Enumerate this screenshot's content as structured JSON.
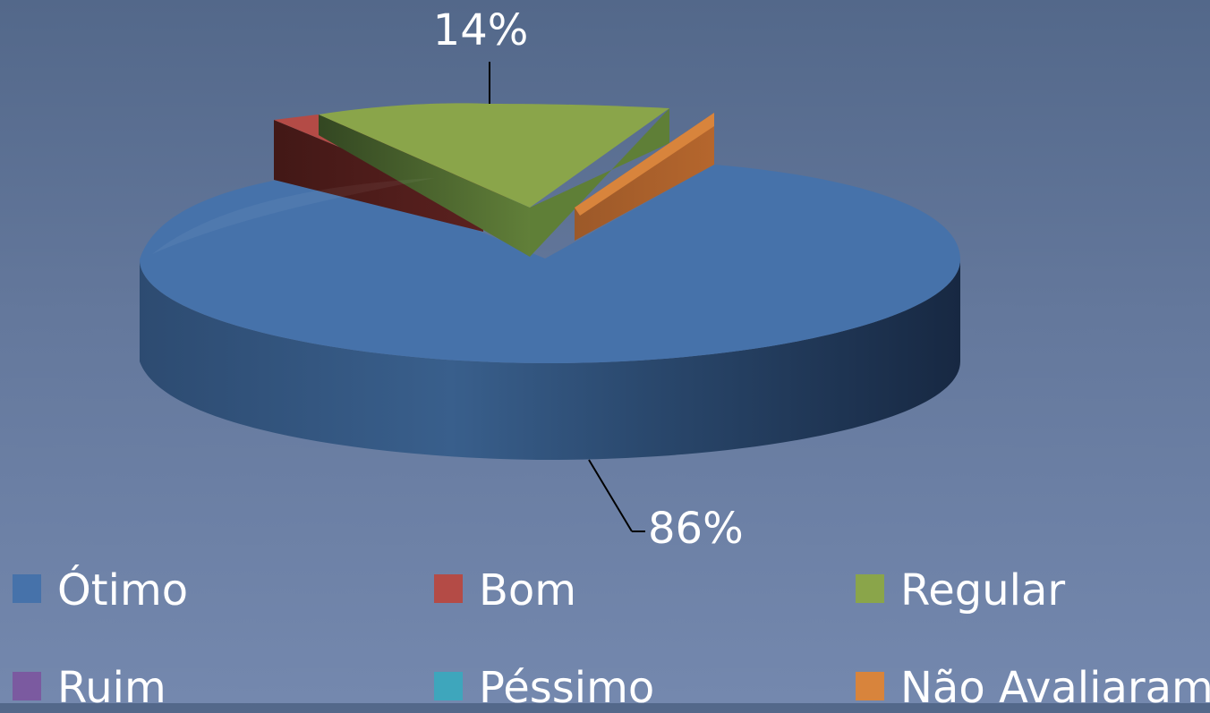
{
  "chart_data": {
    "type": "pie",
    "title": "",
    "legend_position": "bottom",
    "labels": [
      "Ótimo",
      "Bom",
      "Regular",
      "Ruim",
      "Péssimo",
      "Não Avaliaram"
    ],
    "values": [
      86,
      0,
      14,
      0,
      0,
      0
    ],
    "data_labels": [
      "86%",
      "",
      "14%",
      "",
      "",
      ""
    ],
    "colors": [
      "#4672aa",
      "#b44b46",
      "#8aa54a",
      "#7b5aa0",
      "#3ea6bc",
      "#d8843c"
    ]
  },
  "legend": [
    {
      "label": "Ótimo",
      "color": "#4672aa"
    },
    {
      "label": "Bom",
      "color": "#b44b46"
    },
    {
      "label": "Regular",
      "color": "#8aa54a"
    },
    {
      "label": "Ruim",
      "color": "#7b5aa0"
    },
    {
      "label": "Péssimo",
      "color": "#3ea6bc"
    },
    {
      "label": "Não Avaliaram",
      "color": "#d8843c"
    }
  ]
}
